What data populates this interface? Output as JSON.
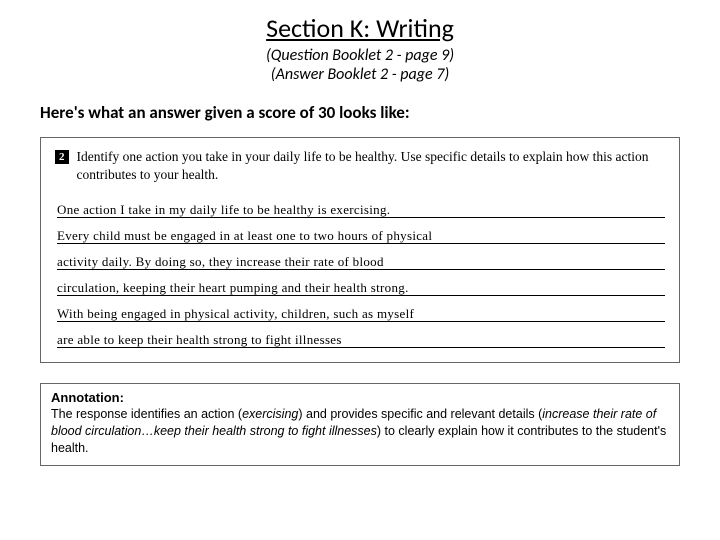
{
  "header": {
    "title": "Section K:  Writing",
    "subtitle1": "(Question Booklet 2 - page 9)",
    "subtitle2": "(Answer Booklet 2 - page 7)"
  },
  "lead": "Here's what an answer given a score of 30 looks like:",
  "question": {
    "number": "2",
    "prompt": "Identify one action you take in your daily life to be healthy. Use specific details to explain how this action contributes to your health."
  },
  "handwritten_lines": [
    "One action I take in my daily life to be healthy is exercising.",
    "Every child must be engaged in at least one to two hours of physical",
    "activity daily. By doing so, they increase their rate of blood",
    "circulation, keeping their heart pumping and their health strong.",
    "With being engaged in physical activity, children, such as myself",
    "are able to keep their health strong to fight illnesses"
  ],
  "annotation": {
    "title": "Annotation:",
    "body_before1": "The response identifies an action (",
    "paren1": "exercising",
    "body_mid": ") and provides specific and relevant details (",
    "paren2": "increase their rate of blood circulation…keep their health strong to fight illnesses",
    "body_after": ") to clearly explain how it contributes to the student's health."
  }
}
